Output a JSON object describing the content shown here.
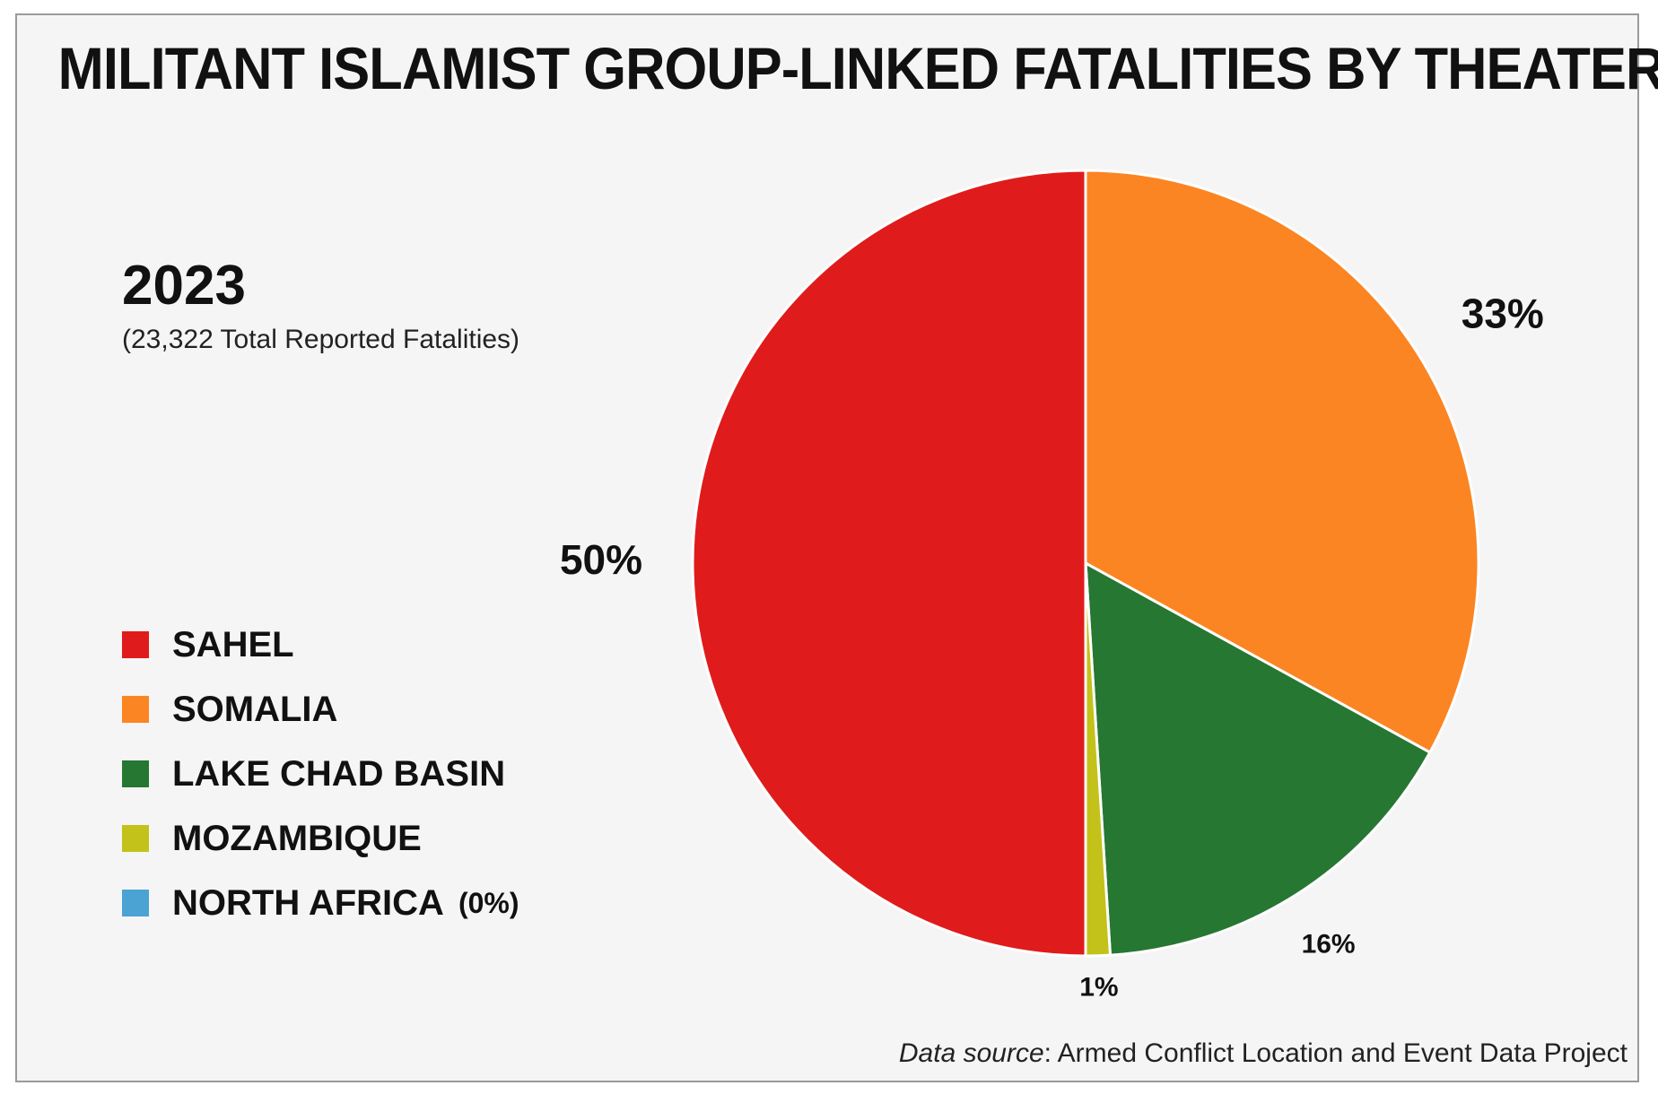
{
  "chart_data": {
    "type": "pie",
    "title": "MILITANT ISLAMIST GROUP-LINKED FATALITIES BY THEATER",
    "subtitle_year": "2023",
    "subtitle_total": "(23,322 Total Reported Fatalities)",
    "categories": [
      "SAHEL",
      "SOMALIA",
      "LAKE CHAD BASIN",
      "MOZAMBIQUE",
      "NORTH AFRICA"
    ],
    "values": [
      50,
      33,
      16,
      1,
      0
    ],
    "value_labels": [
      "50%",
      "33%",
      "16%",
      "1%",
      ""
    ],
    "colors": [
      "#e01b1b",
      "#fb8522",
      "#267732",
      "#c2c21a",
      "#4aa3d3"
    ],
    "legend_notes": [
      "",
      "",
      "",
      "",
      "(0%)"
    ],
    "legend_placement": "left"
  },
  "source": {
    "label": "Data source",
    "text": ": Armed Conflict Location and Event Data Project"
  }
}
